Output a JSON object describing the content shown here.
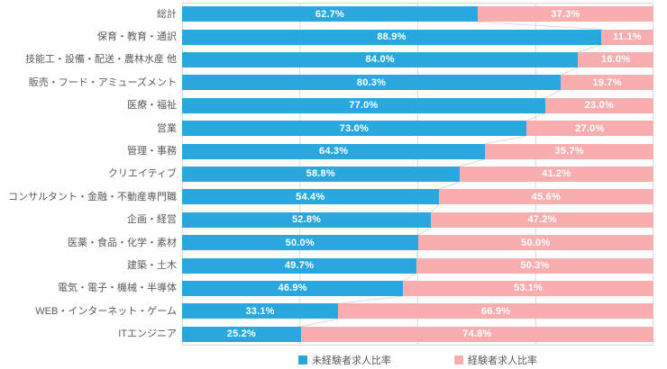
{
  "chart_data": {
    "type": "bar",
    "orientation": "horizontal",
    "stacked": true,
    "unit": "%",
    "title": "",
    "xlabel": "",
    "ylabel": "",
    "xlim": [
      0,
      100
    ],
    "grid": true,
    "gridlines_percent": [
      25,
      50,
      75
    ],
    "legend_position": "bottom",
    "categories": [
      "総計",
      "保育・教育・通訳",
      "技能工・設備・配送・農林水産 他",
      "販売・フード・アミューズメント",
      "医療・福祉",
      "営業",
      "管理・事務",
      "クリエイティブ",
      "コンサルタント・金融・不動産専門職",
      "企画・経営",
      "医薬・食品・化学・素材",
      "建築・土木",
      "電気・電子・機械・半導体",
      "WEB・インターネット・ゲーム",
      "ITエンジニア"
    ],
    "series": [
      {
        "name": "未経験者求人比率",
        "color": "#29A8E0",
        "values": [
          62.7,
          88.9,
          84.0,
          80.3,
          77.0,
          73.0,
          64.3,
          58.8,
          54.4,
          52.8,
          50.0,
          49.7,
          46.9,
          33.1,
          25.2
        ]
      },
      {
        "name": "経験者求人比率",
        "color": "#F8AEAF",
        "values": [
          37.3,
          11.1,
          16.0,
          19.7,
          23.0,
          27.0,
          35.7,
          41.2,
          45.6,
          47.2,
          50.0,
          50.3,
          53.1,
          66.9,
          74.8
        ]
      }
    ],
    "colors": {
      "grid": "#D9D9D9",
      "connector": "#D9D9D9",
      "plot_border": "#D9D9D9",
      "category_text": "#595959",
      "value_text": "#FFFFFF",
      "legend_text": "#595959"
    }
  }
}
